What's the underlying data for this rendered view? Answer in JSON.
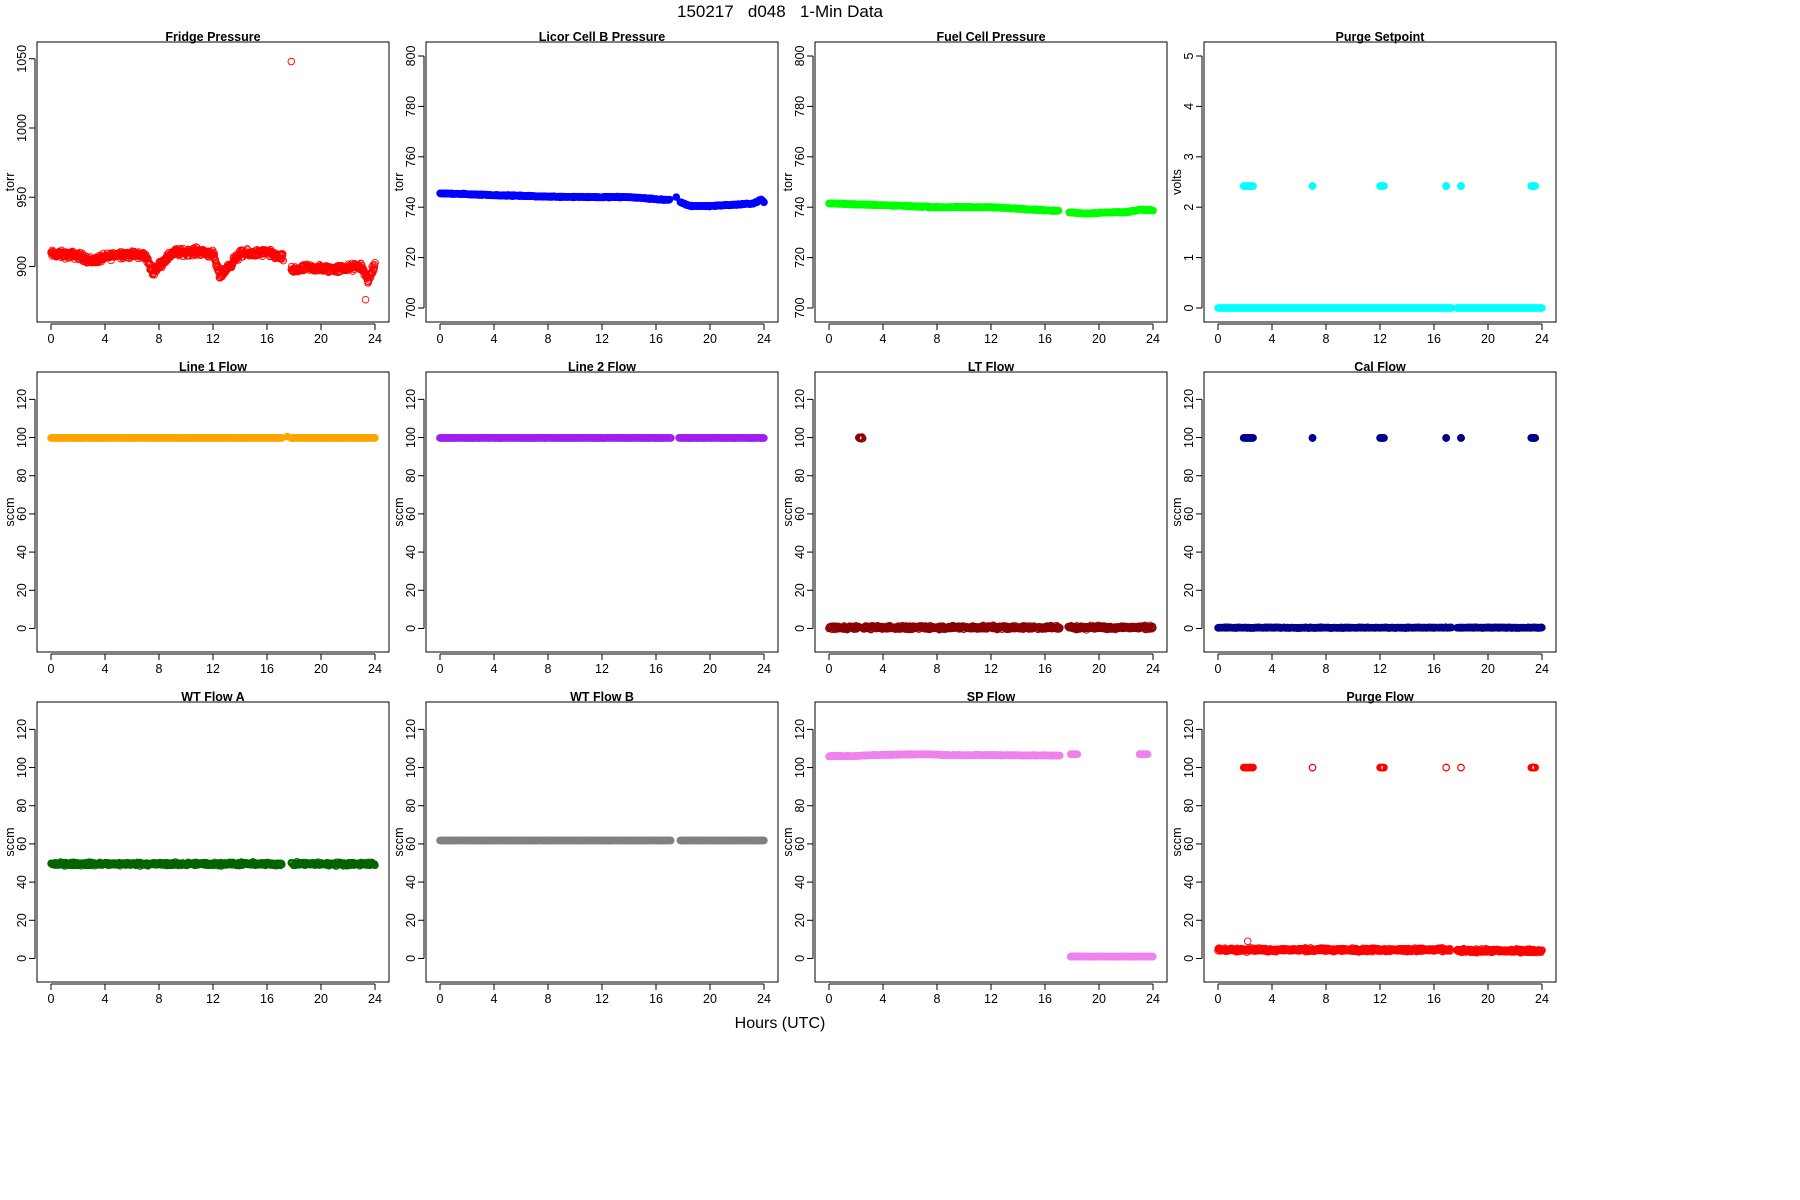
{
  "figure": {
    "title": "150217   d048   1-Min Data",
    "xlabel": "Hours (UTC)"
  },
  "chart_data": [
    {
      "type": "scatter",
      "title": "Fridge Pressure",
      "ylabel": "torr",
      "xlim": [
        0,
        24
      ],
      "ylim": [
        870,
        1052
      ],
      "xticks": [
        0,
        4,
        8,
        12,
        16,
        20,
        24
      ],
      "yticks": [
        900,
        950,
        1000,
        1050
      ],
      "color": "#ff0000",
      "marker": "open",
      "segments": [
        {
          "x": [
            0,
            2,
            3,
            5,
            7,
            7.5,
            9,
            11,
            12,
            12.5,
            14,
            16,
            17.2
          ],
          "y": [
            909,
            908,
            904,
            909,
            908,
            896,
            910,
            911,
            909,
            893,
            909,
            910,
            906
          ],
          "noise": 4
        },
        {
          "x": [
            17.8,
            19,
            21,
            23,
            23.5,
            24
          ],
          "y": [
            897,
            899,
            898,
            900,
            890,
            901
          ],
          "noise": 4
        }
      ],
      "outliers": [
        {
          "x": 17.8,
          "y": 1048
        },
        {
          "x": 23.3,
          "y": 876
        }
      ]
    },
    {
      "type": "scatter",
      "title": "Licor Cell B Pressure",
      "ylabel": "torr",
      "xlim": [
        0,
        24
      ],
      "ylim": [
        700,
        800
      ],
      "xticks": [
        0,
        4,
        8,
        12,
        16,
        20,
        24
      ],
      "yticks": [
        700,
        720,
        740,
        760,
        780,
        800
      ],
      "color": "#0000ff",
      "marker": "filled",
      "segments": [
        {
          "x": [
            0,
            4,
            8,
            12,
            14,
            17
          ],
          "y": [
            745.5,
            744.8,
            744.2,
            744.0,
            744.0,
            742.8
          ],
          "noise": 0.3
        },
        {
          "x": [
            17.8,
            18.5,
            20,
            22,
            23.2,
            23.8,
            24
          ],
          "y": [
            742,
            740.5,
            740.5,
            741,
            741.5,
            743,
            742
          ],
          "noise": 0.3
        }
      ],
      "outliers": [
        {
          "x": 17.5,
          "y": 744
        }
      ]
    },
    {
      "type": "scatter",
      "title": "Fuel Cell Pressure",
      "ylabel": "torr",
      "xlim": [
        0,
        24
      ],
      "ylim": [
        700,
        800
      ],
      "xticks": [
        0,
        4,
        8,
        12,
        16,
        20,
        24
      ],
      "yticks": [
        700,
        720,
        740,
        760,
        780,
        800
      ],
      "color": "#00ff00",
      "marker": "filled",
      "segments": [
        {
          "x": [
            0,
            4,
            8,
            12,
            17
          ],
          "y": [
            741.5,
            740.8,
            740.0,
            740.0,
            738.5
          ],
          "noise": 0.3
        },
        {
          "x": [
            17.8,
            19,
            21,
            22,
            23,
            24
          ],
          "y": [
            738,
            737.5,
            738,
            738,
            739,
            738.8
          ],
          "noise": 0.3
        }
      ],
      "outliers": []
    },
    {
      "type": "scatter",
      "title": "Purge Setpoint",
      "ylabel": "volts",
      "xlim": [
        0,
        24
      ],
      "ylim": [
        0,
        5
      ],
      "xticks": [
        0,
        4,
        8,
        12,
        16,
        20,
        24
      ],
      "yticks": [
        0,
        1,
        2,
        3,
        4,
        5
      ],
      "color": "#00ffff",
      "marker": "filled",
      "segments": [
        {
          "x": [
            0,
            17.3
          ],
          "y": [
            0,
            0
          ],
          "noise": 0
        },
        {
          "x": [
            17.7,
            24
          ],
          "y": [
            0,
            0
          ],
          "noise": 0
        }
      ],
      "clusters": [
        {
          "x": [
            1.9,
            2.6
          ],
          "y": 2.42
        },
        {
          "x": 7.0,
          "y": 2.42
        },
        {
          "x": [
            12.0,
            12.3
          ],
          "y": 2.42
        },
        {
          "x": 16.9,
          "y": 2.42
        },
        {
          "x": 18.0,
          "y": 2.42
        },
        {
          "x": [
            23.2,
            23.5
          ],
          "y": 2.42
        }
      ]
    },
    {
      "type": "scatter",
      "title": "Line 1 Flow",
      "ylabel": "sccm",
      "xlim": [
        0,
        24
      ],
      "ylim": [
        -5,
        127
      ],
      "xticks": [
        0,
        4,
        8,
        12,
        16,
        20,
        24
      ],
      "yticks": [
        0,
        20,
        40,
        60,
        80,
        100,
        120
      ],
      "color": "#ffa500",
      "marker": "filled",
      "segments": [
        {
          "x": [
            0,
            17.1
          ],
          "y": [
            99.8,
            99.8
          ],
          "noise": 0.1
        },
        {
          "x": [
            17.8,
            24
          ],
          "y": [
            99.8,
            99.8
          ],
          "noise": 0.1
        }
      ],
      "outliers": [
        {
          "x": 17.5,
          "y": 100.5
        }
      ]
    },
    {
      "type": "scatter",
      "title": "Line 2 Flow",
      "ylabel": "sccm",
      "xlim": [
        0,
        24
      ],
      "ylim": [
        -5,
        127
      ],
      "xticks": [
        0,
        4,
        8,
        12,
        16,
        20,
        24
      ],
      "yticks": [
        0,
        20,
        40,
        60,
        80,
        100,
        120
      ],
      "color": "#a020f0",
      "marker": "filled",
      "segments": [
        {
          "x": [
            0,
            17.1
          ],
          "y": [
            99.8,
            99.8
          ],
          "noise": 0.1
        },
        {
          "x": [
            17.7,
            24
          ],
          "y": [
            99.8,
            99.8
          ],
          "noise": 0.1
        }
      ],
      "outliers": []
    },
    {
      "type": "scatter",
      "title": "LT Flow",
      "ylabel": "sccm",
      "xlim": [
        0,
        24
      ],
      "ylim": [
        -5,
        127
      ],
      "xticks": [
        0,
        4,
        8,
        12,
        16,
        20,
        24
      ],
      "yticks": [
        0,
        20,
        40,
        60,
        80,
        100,
        120
      ],
      "color": "#8b0000",
      "marker": "open",
      "segments": [
        {
          "x": [
            0,
            2.2
          ],
          "y": [
            0.5,
            0.5
          ],
          "noise": 1.4
        },
        {
          "x": [
            2.5,
            17.1
          ],
          "y": [
            0.5,
            0.5
          ],
          "noise": 1.4
        },
        {
          "x": [
            17.7,
            24
          ],
          "y": [
            0.5,
            0.5
          ],
          "noise": 1.4
        }
      ],
      "clusters": [
        {
          "x": [
            2.2,
            2.5
          ],
          "y": 100,
          "noise": 1.5
        }
      ]
    },
    {
      "type": "scatter",
      "title": "Cal Flow",
      "ylabel": "sccm",
      "xlim": [
        0,
        24
      ],
      "ylim": [
        -5,
        127
      ],
      "xticks": [
        0,
        4,
        8,
        12,
        16,
        20,
        24
      ],
      "yticks": [
        0,
        20,
        40,
        60,
        80,
        100,
        120
      ],
      "color": "#00008b",
      "marker": "filled",
      "segments": [
        {
          "x": [
            0,
            17.3
          ],
          "y": [
            0.4,
            0.4
          ],
          "noise": 0.3
        },
        {
          "x": [
            17.7,
            24
          ],
          "y": [
            0.4,
            0.4
          ],
          "noise": 0.3
        }
      ],
      "clusters": [
        {
          "x": [
            1.9,
            2.6
          ],
          "y": 99.8
        },
        {
          "x": 7.0,
          "y": 99.8
        },
        {
          "x": [
            12.0,
            12.3
          ],
          "y": 99.8
        },
        {
          "x": 16.9,
          "y": 99.8
        },
        {
          "x": 18.0,
          "y": 99.8
        },
        {
          "x": [
            23.2,
            23.5
          ],
          "y": 99.8
        }
      ]
    },
    {
      "type": "scatter",
      "title": "WT Flow A",
      "ylabel": "sccm",
      "xlim": [
        0,
        24
      ],
      "ylim": [
        -5,
        127
      ],
      "xticks": [
        0,
        4,
        8,
        12,
        16,
        20,
        24
      ],
      "yticks": [
        0,
        20,
        40,
        60,
        80,
        100,
        120
      ],
      "color": "#006400",
      "marker": "open",
      "segments": [
        {
          "x": [
            0,
            17.1
          ],
          "y": [
            49.5,
            49.5
          ],
          "noise": 1.3
        },
        {
          "x": [
            17.8,
            24
          ],
          "y": [
            49.5,
            49.5
          ],
          "noise": 1.3
        }
      ],
      "outliers": []
    },
    {
      "type": "scatter",
      "title": "WT Flow B",
      "ylabel": "sccm",
      "xlim": [
        0,
        24
      ],
      "ylim": [
        -5,
        127
      ],
      "xticks": [
        0,
        4,
        8,
        12,
        16,
        20,
        24
      ],
      "yticks": [
        0,
        20,
        40,
        60,
        80,
        100,
        120
      ],
      "color": "#808080",
      "marker": "filled",
      "segments": [
        {
          "x": [
            0,
            17.1
          ],
          "y": [
            61.8,
            61.8
          ],
          "noise": 0.1
        },
        {
          "x": [
            17.8,
            24
          ],
          "y": [
            61.8,
            61.8
          ],
          "noise": 0.1
        }
      ],
      "outliers": []
    },
    {
      "type": "scatter",
      "title": "SP Flow",
      "ylabel": "sccm",
      "xlim": [
        0,
        24
      ],
      "ylim": [
        -5,
        127
      ],
      "xticks": [
        0,
        4,
        8,
        12,
        16,
        20,
        24
      ],
      "yticks": [
        0,
        20,
        40,
        60,
        80,
        100,
        120
      ],
      "color": "#ee82ee",
      "marker": "filled",
      "segments": [
        {
          "x": [
            0,
            2,
            3,
            7.5,
            8.5,
            12.5,
            17.1
          ],
          "y": [
            106,
            106,
            106.5,
            107,
            106.5,
            106.5,
            106.3
          ],
          "noise": 0.3
        },
        {
          "x": [
            17.9,
            23,
            24
          ],
          "y": [
            1.0,
            1.0,
            1.0
          ],
          "noise": 0.2
        }
      ],
      "clusters": [
        {
          "x": [
            17.9,
            18.4
          ],
          "y": 107
        },
        {
          "x": [
            23.0,
            23.6
          ],
          "y": 107
        }
      ]
    },
    {
      "type": "scatter",
      "title": "Purge Flow",
      "ylabel": "sccm",
      "xlim": [
        0,
        24
      ],
      "ylim": [
        -5,
        127
      ],
      "xticks": [
        0,
        4,
        8,
        12,
        16,
        20,
        24
      ],
      "yticks": [
        0,
        20,
        40,
        60,
        80,
        100,
        120
      ],
      "color": "#ff0000",
      "marker": "open",
      "segments": [
        {
          "x": [
            0,
            17.2
          ],
          "y": [
            4.5,
            4.5
          ],
          "noise": 1.3
        },
        {
          "x": [
            17.7,
            24
          ],
          "y": [
            4.0,
            4.0
          ],
          "noise": 1.3
        }
      ],
      "clusters": [
        {
          "x": [
            1.9,
            2.6
          ],
          "y": 100
        },
        {
          "x": 7.0,
          "y": 100
        },
        {
          "x": [
            12.0,
            12.3
          ],
          "y": 100
        },
        {
          "x": 16.9,
          "y": 100
        },
        {
          "x": 18.0,
          "y": 100
        },
        {
          "x": [
            23.2,
            23.5
          ],
          "y": 100
        }
      ],
      "outliers": [
        {
          "x": 2.2,
          "y": 9
        }
      ]
    }
  ]
}
